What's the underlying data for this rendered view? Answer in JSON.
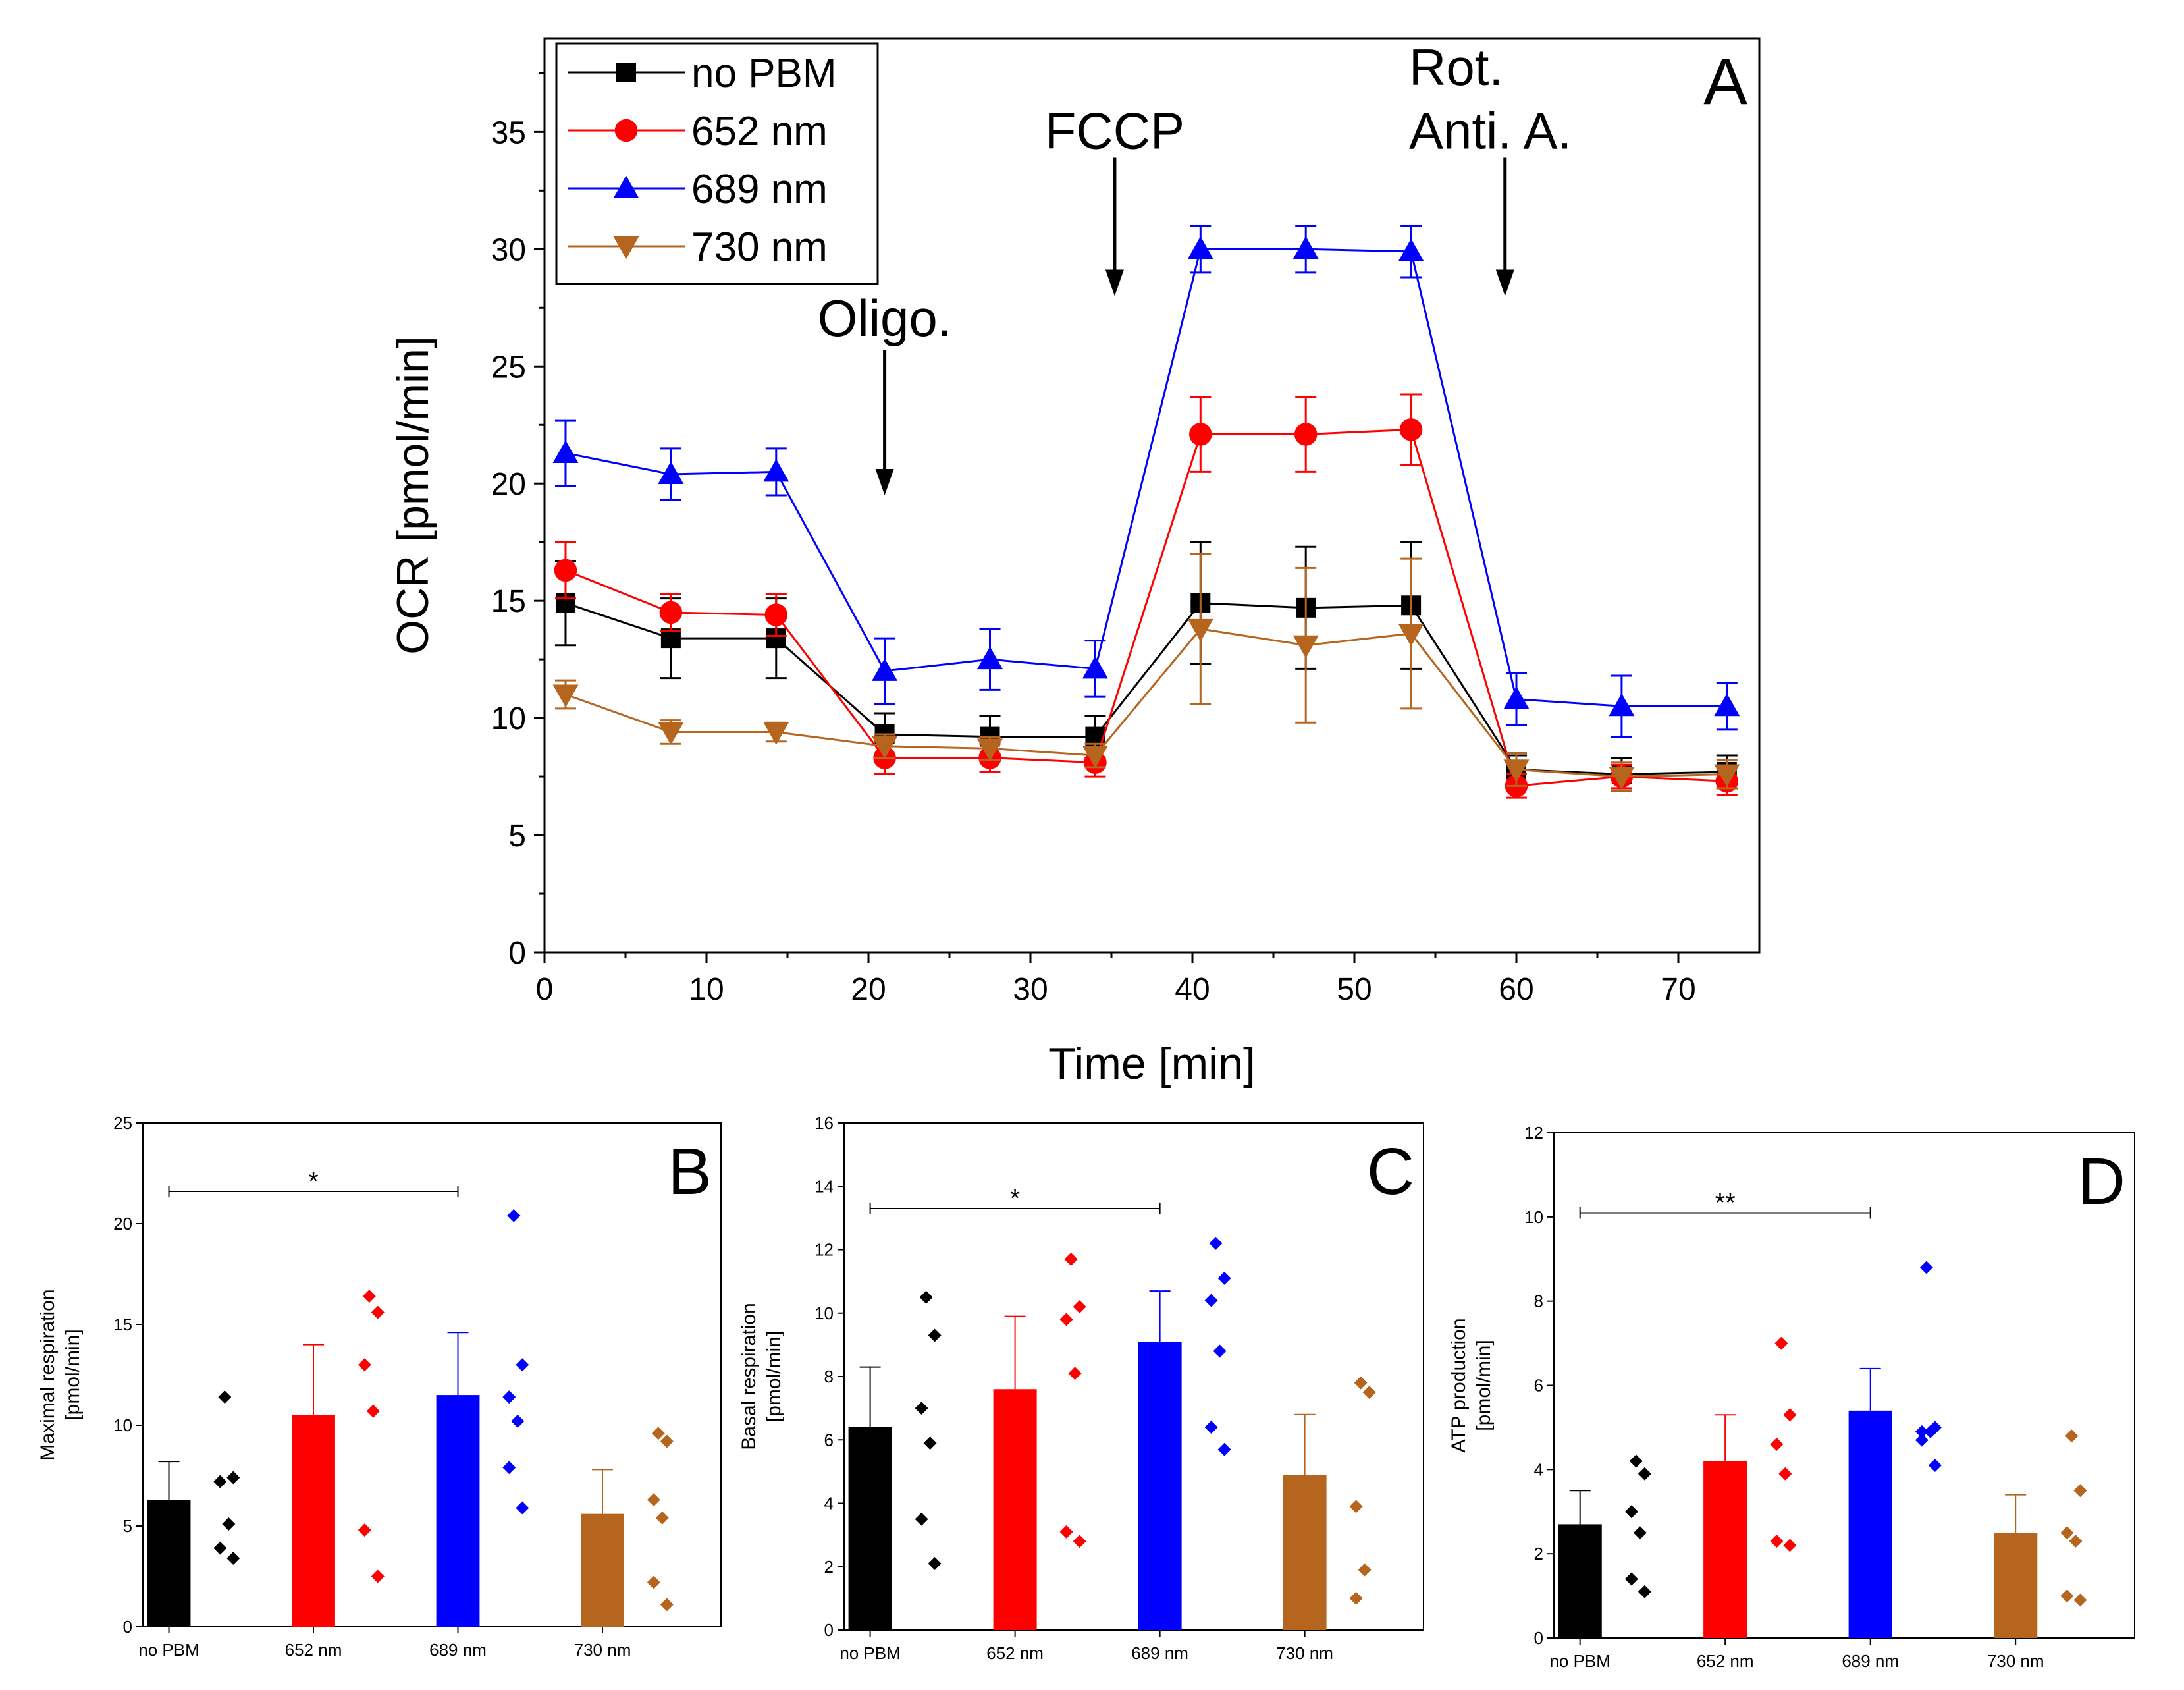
{
  "chart_data": [
    {
      "id": "A",
      "type": "line",
      "panel_label": "A",
      "xlabel": "Time [min]",
      "ylabel": "OCR [pmol/min]",
      "xlim": [
        0,
        75
      ],
      "ylim": [
        0,
        39
      ],
      "xticks": [
        0,
        10,
        20,
        30,
        40,
        50,
        60,
        70
      ],
      "yticks": [
        0,
        5,
        10,
        15,
        20,
        25,
        30,
        35
      ],
      "x": [
        1.3,
        7.8,
        14.3,
        21,
        27.5,
        34,
        40.5,
        47,
        53.5,
        60,
        66.5,
        73
      ],
      "series": [
        {
          "name": "no PBM",
          "color": "#000000",
          "marker": "square",
          "values": [
            14.9,
            13.4,
            13.4,
            9.3,
            9.2,
            9.2,
            14.9,
            14.7,
            14.8,
            7.8,
            7.6,
            7.7
          ],
          "errors": [
            1.8,
            1.7,
            1.7,
            0.9,
            0.9,
            0.9,
            2.6,
            2.6,
            2.7,
            0.6,
            0.7,
            0.7
          ]
        },
        {
          "name": "652 nm",
          "color": "#ff0000",
          "marker": "circle",
          "values": [
            16.3,
            14.5,
            14.4,
            8.3,
            8.3,
            8.1,
            22.1,
            22.1,
            22.3,
            7.1,
            7.5,
            7.3
          ],
          "errors": [
            1.2,
            0.8,
            0.9,
            0.7,
            0.6,
            0.6,
            1.6,
            1.6,
            1.5,
            0.5,
            0.5,
            0.6
          ]
        },
        {
          "name": "689 nm",
          "color": "#0000ff",
          "marker": "triangle-up",
          "values": [
            21.3,
            20.4,
            20.5,
            12.0,
            12.5,
            12.1,
            30.0,
            30.0,
            29.9,
            10.8,
            10.5,
            10.5
          ],
          "errors": [
            1.4,
            1.1,
            1.0,
            1.4,
            1.3,
            1.2,
            1.0,
            1.0,
            1.1,
            1.1,
            1.3,
            1.0
          ]
        },
        {
          "name": "730 nm",
          "color": "#b5651d",
          "marker": "triangle-down",
          "values": [
            11.0,
            9.4,
            9.4,
            8.8,
            8.7,
            8.4,
            13.8,
            13.1,
            13.6,
            7.8,
            7.5,
            7.6
          ],
          "errors": [
            0.6,
            0.5,
            0.4,
            0.5,
            0.5,
            0.5,
            3.2,
            3.3,
            3.2,
            0.7,
            0.6,
            0.6
          ]
        }
      ],
      "annotations": [
        {
          "text": "Oligo.",
          "x": 21,
          "y_text": 26.3,
          "arrow_from": 25.7,
          "arrow_to": 19.5
        },
        {
          "text": "FCCP",
          "x": 35.2,
          "y_text": 34.3,
          "arrow_from": 33.9,
          "arrow_to": 28.0
        },
        {
          "text": "Rot.",
          "x": 59.3,
          "y_text": 37.0,
          "arrow_from": 33.9,
          "arrow_to": 28.0
        },
        {
          "text": "Anti. A.",
          "x": 59.3,
          "y_text": 34.3
        }
      ],
      "legend": {
        "placement": "top-left"
      }
    },
    {
      "id": "B",
      "type": "bar",
      "panel_label": "B",
      "ylabel": "Maximal respiration",
      "ylabel2": "[pmol/min]",
      "ylim": [
        0,
        25
      ],
      "yticks": [
        0,
        5,
        10,
        15,
        20,
        25
      ],
      "categories": [
        "no PBM",
        "652 nm",
        "689 nm",
        "730 nm"
      ],
      "colors": [
        "#000000",
        "#ff0000",
        "#0000ff",
        "#b5651d"
      ],
      "values": [
        6.3,
        10.5,
        11.5,
        5.6
      ],
      "errors": [
        1.9,
        3.5,
        3.1,
        2.2
      ],
      "points": [
        [
          11.4,
          7.4,
          7.2,
          5.1,
          3.9,
          3.4
        ],
        [
          16.4,
          15.6,
          13.0,
          10.7,
          4.8,
          2.5
        ],
        [
          20.4,
          13.0,
          11.4,
          10.2,
          7.9,
          5.9
        ],
        [
          9.6,
          9.2,
          6.3,
          5.4,
          2.2,
          1.1
        ]
      ],
      "significance": {
        "from": 0,
        "to": 2,
        "label": "*",
        "y": 21.6
      }
    },
    {
      "id": "C",
      "type": "bar",
      "panel_label": "C",
      "ylabel": "Basal respiration",
      "ylabel2": "[pmol/min]",
      "ylim": [
        0,
        16
      ],
      "yticks": [
        0,
        2,
        4,
        6,
        8,
        10,
        12,
        14,
        16
      ],
      "categories": [
        "no PBM",
        "652 nm",
        "689 nm",
        "730 nm"
      ],
      "colors": [
        "#000000",
        "#ff0000",
        "#0000ff",
        "#b5651d"
      ],
      "values": [
        6.4,
        7.6,
        9.1,
        4.9
      ],
      "errors": [
        1.9,
        2.3,
        1.6,
        1.9
      ],
      "points": [
        [
          10.5,
          9.3,
          7.0,
          5.9,
          3.5,
          2.1
        ],
        [
          11.7,
          10.2,
          9.8,
          8.1,
          3.1,
          2.8
        ],
        [
          12.2,
          11.1,
          10.4,
          8.8,
          6.4,
          5.7
        ],
        [
          7.8,
          7.5,
          3.9,
          1.9,
          1.0
        ]
      ],
      "significance": {
        "from": 0,
        "to": 2,
        "label": "*",
        "y": 13.3
      }
    },
    {
      "id": "D",
      "type": "bar",
      "panel_label": "D",
      "ylabel": "ATP production",
      "ylabel2": "[pmol/min]",
      "ylim": [
        0,
        12
      ],
      "yticks": [
        0,
        2,
        4,
        6,
        8,
        10,
        12
      ],
      "categories": [
        "no PBM",
        "652 nm",
        "689 nm",
        "730 nm"
      ],
      "colors": [
        "#000000",
        "#ff0000",
        "#0000ff",
        "#b5651d"
      ],
      "values": [
        2.7,
        4.2,
        5.4,
        2.5
      ],
      "errors": [
        0.8,
        1.1,
        1.0,
        0.9
      ],
      "points": [
        [
          4.2,
          3.9,
          3.0,
          2.5,
          1.4,
          1.1
        ],
        [
          7.0,
          5.3,
          4.6,
          3.9,
          2.3,
          2.2
        ],
        [
          8.8,
          5.0,
          4.9,
          4.9,
          4.7,
          4.1
        ],
        [
          4.8,
          3.5,
          2.5,
          2.3,
          1.0,
          0.9
        ]
      ],
      "significance": {
        "from": 0,
        "to": 2,
        "label": "**",
        "y": 10.1
      }
    }
  ]
}
